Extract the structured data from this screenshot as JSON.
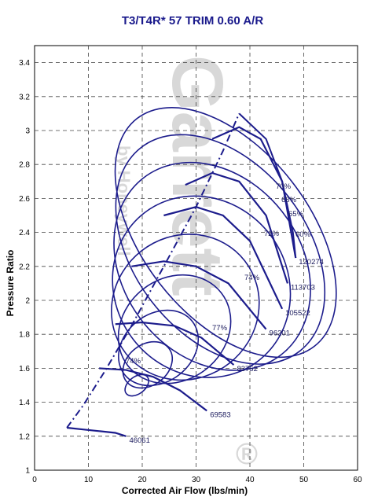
{
  "chart_data": {
    "type": "line",
    "title": "T3/T4R* 57 TRIM  0.60 A/R",
    "xlabel": "Corrected Air Flow (lbs/min)",
    "ylabel": "Pressure Ratio",
    "xlim": [
      0,
      60
    ],
    "ylim": [
      1,
      3.5
    ],
    "x_ticks": [
      "0",
      "10",
      "20",
      "30",
      "40",
      "50",
      "60"
    ],
    "y_ticks": [
      "1",
      "1.2",
      "1.4",
      "1.6",
      "1.8",
      "2",
      "2.2",
      "2.4",
      "2.6",
      "2.8",
      "3",
      "3.2",
      "3.4"
    ],
    "grid": true,
    "line_color": "#1c1c8c",
    "watermark": [
      "Garrett",
      "by Honeywell",
      "®"
    ],
    "surge_line": {
      "x": [
        6,
        9,
        13,
        18,
        24,
        30,
        35,
        38
      ],
      "y": [
        1.25,
        1.38,
        1.58,
        1.85,
        2.2,
        2.55,
        2.88,
        3.1
      ]
    },
    "speed_lines": [
      {
        "label": "46061",
        "x": [
          6,
          9,
          12,
          15,
          17
        ],
        "y": [
          1.25,
          1.24,
          1.23,
          1.22,
          1.2
        ]
      },
      {
        "label": "69583",
        "x": [
          12,
          17,
          22,
          27,
          32
        ],
        "y": [
          1.6,
          1.59,
          1.55,
          1.47,
          1.35
        ]
      },
      {
        "label": "83752",
        "x": [
          15,
          20,
          26,
          31,
          37
        ],
        "y": [
          1.86,
          1.87,
          1.85,
          1.78,
          1.62
        ]
      },
      {
        "label": "96201",
        "x": [
          18,
          24,
          30,
          36,
          43
        ],
        "y": [
          2.2,
          2.23,
          2.2,
          2.1,
          1.83
        ]
      },
      {
        "label": "105522",
        "x": [
          24,
          30,
          35,
          40,
          46
        ],
        "y": [
          2.5,
          2.55,
          2.5,
          2.35,
          1.95
        ]
      },
      {
        "label": "113703",
        "x": [
          28,
          33,
          38,
          43,
          47
        ],
        "y": [
          2.68,
          2.75,
          2.7,
          2.5,
          2.1
        ]
      },
      {
        "label": "120274",
        "x": [
          33,
          38,
          42,
          46,
          48.5
        ],
        "y": [
          2.95,
          3.02,
          2.95,
          2.7,
          2.25
        ]
      }
    ],
    "choke_line": {
      "x": [
        38,
        43,
        46,
        48,
        48.5
      ],
      "y": [
        3.1,
        2.95,
        2.7,
        2.4,
        2.25
      ]
    },
    "efficiency_islands": [
      {
        "label": "74%",
        "cx": 19,
        "cy": 1.5,
        "rx": 2.5,
        "ry": 0.05
      },
      {
        "label": "",
        "cx": 21,
        "cy": 1.62,
        "rx": 5,
        "ry": 0.12
      },
      {
        "label": "",
        "cx": 23,
        "cy": 1.72,
        "rx": 8,
        "ry": 0.2
      },
      {
        "label": "74%",
        "cx": 26,
        "cy": 1.83,
        "rx": 11,
        "ry": 0.3
      },
      {
        "label": "72%",
        "cx": 28,
        "cy": 1.96,
        "rx": 14,
        "ry": 0.42
      },
      {
        "label": "70%",
        "cx": 31,
        "cy": 2.08,
        "rx": 16,
        "ry": 0.55
      },
      {
        "label": "68%",
        "cx": 33,
        "cy": 2.2,
        "rx": 16.5,
        "ry": 0.66
      },
      {
        "label": "65%",
        "cx": 34.5,
        "cy": 2.3,
        "rx": 16,
        "ry": 0.76
      },
      {
        "label": "60%",
        "cx": 35.5,
        "cy": 2.4,
        "rx": 15.5,
        "ry": 0.85
      }
    ],
    "annotations": [
      "70%",
      "68%",
      "65%",
      "60%",
      "72%",
      "74%",
      "77%",
      "74%"
    ]
  }
}
